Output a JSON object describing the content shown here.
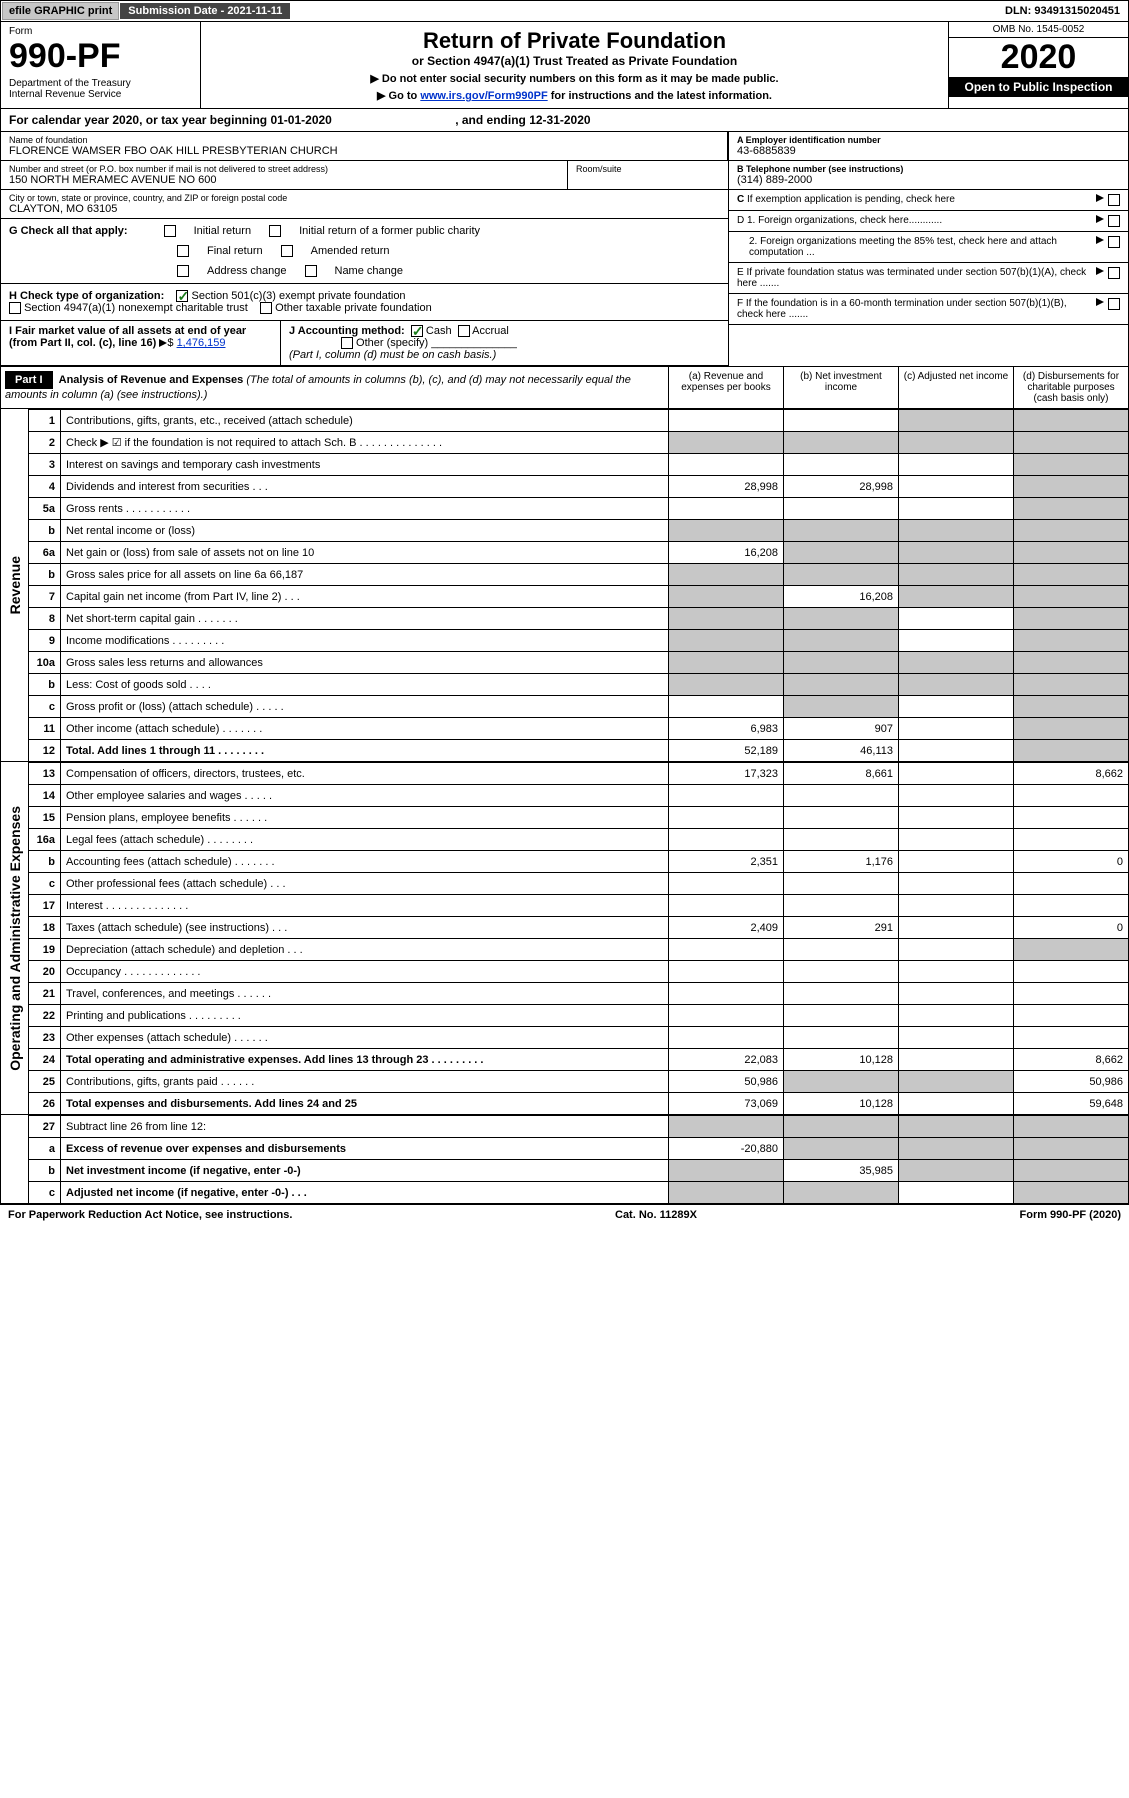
{
  "topbar": {
    "efile": "efile GRAPHIC print",
    "sub_date": "Submission Date - 2021-11-11",
    "dln": "DLN: 93491315020451"
  },
  "header": {
    "form_label": "Form",
    "form_num": "990-PF",
    "dept": "Department of the Treasury\nInternal Revenue Service",
    "title": "Return of Private Foundation",
    "subtitle": "or Section 4947(a)(1) Trust Treated as Private Foundation",
    "note1": "▶ Do not enter social security numbers on this form as it may be made public.",
    "note2_pre": "▶ Go to ",
    "note2_link": "www.irs.gov/Form990PF",
    "note2_post": " for instructions and the latest information.",
    "omb": "OMB No. 1545-0052",
    "year": "2020",
    "open": "Open to Public Inspection"
  },
  "year_row": {
    "pre": "For calendar year 2020, or tax year beginning ",
    "begin": "01-01-2020",
    "mid": " , and ending ",
    "end": "12-31-2020"
  },
  "info": {
    "name_lbl": "Name of foundation",
    "name": "FLORENCE WAMSER FBO OAK HILL PRESBYTERIAN CHURCH",
    "addr_lbl": "Number and street (or P.O. box number if mail is not delivered to street address)",
    "addr": "150 NORTH MERAMEC AVENUE NO 600",
    "room_lbl": "Room/suite",
    "room": "",
    "city_lbl": "City or town, state or province, country, and ZIP or foreign postal code",
    "city": "CLAYTON, MO  63105",
    "ein_lbl": "A Employer identification number",
    "ein": "43-6885839",
    "tel_lbl": "B Telephone number (see instructions)",
    "tel": "(314) 889-2000",
    "c_lbl": "C If exemption application is pending, check here",
    "d1": "D 1. Foreign organizations, check here............",
    "d2": "2. Foreign organizations meeting the 85% test, check here and attach computation ...",
    "e": "E  If private foundation status was terminated under section 507(b)(1)(A), check here .......",
    "f": "F  If the foundation is in a 60-month termination under section 507(b)(1)(B), check here .......",
    "g_lbl": "G Check all that apply:",
    "g_opts": [
      "Initial return",
      "Initial return of a former public charity",
      "Final return",
      "Amended return",
      "Address change",
      "Name change"
    ],
    "h_lbl": "H Check type of organization:",
    "h_opts": [
      "Section 501(c)(3) exempt private foundation",
      "Section 4947(a)(1) nonexempt charitable trust",
      "Other taxable private foundation"
    ],
    "h_checked": 0,
    "i_lbl": "I Fair market value of all assets at end of year (from Part II, col. (c), line 16)",
    "i_val": "1,476,159",
    "j_lbl": "J Accounting method:",
    "j_opts": [
      "Cash",
      "Accrual",
      "Other (specify)"
    ],
    "j_checked": 0,
    "j_note": "(Part I, column (d) must be on cash basis.)"
  },
  "part1": {
    "hdr": "Part I",
    "title": "Analysis of Revenue and Expenses",
    "title_note": "(The total of amounts in columns (b), (c), and (d) may not necessarily equal the amounts in column (a) (see instructions).)",
    "cols": [
      "(a)    Revenue and expenses per books",
      "(b)   Net investment income",
      "(c)    Adjusted net income",
      "(d)   Disbursements for charitable purposes (cash basis only)"
    ]
  },
  "rows": [
    {
      "n": "1",
      "lbl": "Contributions, gifts, grants, etc., received (attach schedule)",
      "a": "",
      "b": "",
      "c": "gray",
      "d": "gray"
    },
    {
      "n": "2",
      "lbl": "Check ▶ ☑ if the foundation is not required to attach Sch. B   .  .  .  .  .  .  .  .  .  .  .  .  .  .",
      "a": "gray",
      "b": "gray",
      "c": "gray",
      "d": "gray"
    },
    {
      "n": "3",
      "lbl": "Interest on savings and temporary cash investments",
      "a": "",
      "b": "",
      "c": "",
      "d": "gray"
    },
    {
      "n": "4",
      "lbl": "Dividends and interest from securities  .  .  .",
      "a": "28,998",
      "b": "28,998",
      "c": "",
      "d": "gray"
    },
    {
      "n": "5a",
      "lbl": "Gross rents   .  .  .  .  .  .  .  .  .  .  .",
      "a": "",
      "b": "",
      "c": "",
      "d": "gray"
    },
    {
      "n": "b",
      "lbl": "Net rental income or (loss)  ",
      "a": "gray",
      "b": "gray",
      "c": "gray",
      "d": "gray"
    },
    {
      "n": "6a",
      "lbl": "Net gain or (loss) from sale of assets not on line 10",
      "a": "16,208",
      "b": "gray",
      "c": "gray",
      "d": "gray"
    },
    {
      "n": "b",
      "lbl": "Gross sales price for all assets on line 6a            66,187",
      "a": "gray",
      "b": "gray",
      "c": "gray",
      "d": "gray"
    },
    {
      "n": "7",
      "lbl": "Capital gain net income (from Part IV, line 2)  .  .  .",
      "a": "gray",
      "b": "16,208",
      "c": "gray",
      "d": "gray"
    },
    {
      "n": "8",
      "lbl": "Net short-term capital gain  .  .  .  .  .  .  .",
      "a": "gray",
      "b": "gray",
      "c": "",
      "d": "gray"
    },
    {
      "n": "9",
      "lbl": "Income modifications  .  .  .  .  .  .  .  .  .",
      "a": "gray",
      "b": "gray",
      "c": "",
      "d": "gray"
    },
    {
      "n": "10a",
      "lbl": "Gross sales less returns and allowances",
      "a": "gray",
      "b": "gray",
      "c": "gray",
      "d": "gray"
    },
    {
      "n": "b",
      "lbl": "Less: Cost of goods sold   .  .  .  .",
      "a": "gray",
      "b": "gray",
      "c": "gray",
      "d": "gray"
    },
    {
      "n": "c",
      "lbl": "Gross profit or (loss) (attach schedule)   .  .  .  .  .",
      "a": "",
      "b": "gray",
      "c": "",
      "d": "gray"
    },
    {
      "n": "11",
      "lbl": "Other income (attach schedule)   .  .  .  .  .  .  .",
      "a": "6,983",
      "b": "907",
      "c": "",
      "d": "gray"
    },
    {
      "n": "12",
      "lbl": "Total. Add lines 1 through 11   .  .  .  .  .  .  .  .",
      "a": "52,189",
      "b": "46,113",
      "c": "",
      "d": "gray",
      "bold": true
    }
  ],
  "exp_rows": [
    {
      "n": "13",
      "lbl": "Compensation of officers, directors, trustees, etc.",
      "a": "17,323",
      "b": "8,661",
      "c": "",
      "d": "8,662"
    },
    {
      "n": "14",
      "lbl": "Other employee salaries and wages   .  .  .  .  .",
      "a": "",
      "b": "",
      "c": "",
      "d": ""
    },
    {
      "n": "15",
      "lbl": "Pension plans, employee benefits  .  .  .  .  .  .",
      "a": "",
      "b": "",
      "c": "",
      "d": ""
    },
    {
      "n": "16a",
      "lbl": "Legal fees (attach schedule)  .  .  .  .  .  .  .  .",
      "a": "",
      "b": "",
      "c": "",
      "d": ""
    },
    {
      "n": "b",
      "lbl": "Accounting fees (attach schedule)  .  .  .  .  .  .  .",
      "a": "2,351",
      "b": "1,176",
      "c": "",
      "d": "0"
    },
    {
      "n": "c",
      "lbl": "Other professional fees (attach schedule)   .  .  .",
      "a": "",
      "b": "",
      "c": "",
      "d": ""
    },
    {
      "n": "17",
      "lbl": "Interest  .  .  .  .  .  .  .  .  .  .  .  .  .  .",
      "a": "",
      "b": "",
      "c": "",
      "d": ""
    },
    {
      "n": "18",
      "lbl": "Taxes (attach schedule) (see instructions)   .  .  .",
      "a": "2,409",
      "b": "291",
      "c": "",
      "d": "0"
    },
    {
      "n": "19",
      "lbl": "Depreciation (attach schedule) and depletion   .  .  .",
      "a": "",
      "b": "",
      "c": "",
      "d": "gray"
    },
    {
      "n": "20",
      "lbl": "Occupancy  .  .  .  .  .  .  .  .  .  .  .  .  .",
      "a": "",
      "b": "",
      "c": "",
      "d": ""
    },
    {
      "n": "21",
      "lbl": "Travel, conferences, and meetings  .  .  .  .  .  .",
      "a": "",
      "b": "",
      "c": "",
      "d": ""
    },
    {
      "n": "22",
      "lbl": "Printing and publications  .  .  .  .  .  .  .  .  .",
      "a": "",
      "b": "",
      "c": "",
      "d": ""
    },
    {
      "n": "23",
      "lbl": "Other expenses (attach schedule)  .  .  .  .  .  .",
      "a": "",
      "b": "",
      "c": "",
      "d": ""
    },
    {
      "n": "24",
      "lbl": "Total operating and administrative expenses. Add lines 13 through 23   .  .  .  .  .  .  .  .  .",
      "a": "22,083",
      "b": "10,128",
      "c": "",
      "d": "8,662",
      "bold": true
    },
    {
      "n": "25",
      "lbl": "Contributions, gifts, grants paid    .  .  .  .  .  .",
      "a": "50,986",
      "b": "gray",
      "c": "gray",
      "d": "50,986"
    },
    {
      "n": "26",
      "lbl": "Total expenses and disbursements. Add lines 24 and 25",
      "a": "73,069",
      "b": "10,128",
      "c": "",
      "d": "59,648",
      "bold": true
    }
  ],
  "bot_rows": [
    {
      "n": "27",
      "lbl": "Subtract line 26 from line 12:",
      "a": "gray",
      "b": "gray",
      "c": "gray",
      "d": "gray"
    },
    {
      "n": "a",
      "lbl": "Excess of revenue over expenses and disbursements",
      "a": "-20,880",
      "b": "gray",
      "c": "gray",
      "d": "gray",
      "bold": true
    },
    {
      "n": "b",
      "lbl": "Net investment income (if negative, enter -0-)",
      "a": "gray",
      "b": "35,985",
      "c": "gray",
      "d": "gray",
      "bold": true
    },
    {
      "n": "c",
      "lbl": "Adjusted net income (if negative, enter -0-)  .  .  .",
      "a": "gray",
      "b": "gray",
      "c": "",
      "d": "gray",
      "bold": true
    }
  ],
  "side": {
    "revenue": "Revenue",
    "expenses": "Operating and Administrative Expenses"
  },
  "footer": {
    "left": "For Paperwork Reduction Act Notice, see instructions.",
    "mid": "Cat. No. 11289X",
    "right": "Form 990-PF (2020)"
  }
}
